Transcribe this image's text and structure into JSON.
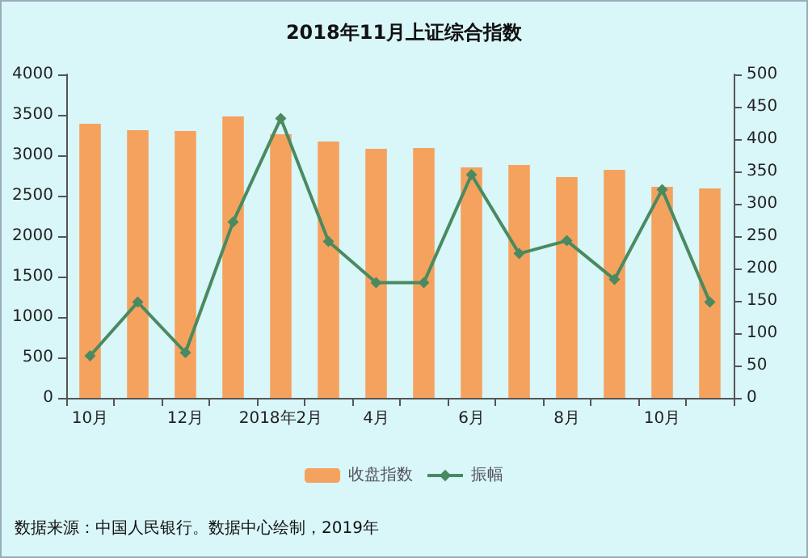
{
  "chart_data": {
    "type": "bar",
    "title": "2018年11月上证综合指数",
    "categories": [
      "10月",
      null,
      "12月",
      null,
      "2018年2月",
      null,
      "4月",
      null,
      "6月",
      null,
      "8月",
      null,
      "10月",
      null
    ],
    "series": [
      {
        "name": "收盘指数",
        "color": "#f5a25e",
        "values": [
          3390,
          3310,
          3300,
          3480,
          3260,
          3170,
          3080,
          3090,
          2850,
          2880,
          2730,
          2820,
          2610,
          2590
        ]
      },
      {
        "name": "振幅",
        "type": "line",
        "axis": "y2",
        "color": "#4a8a60",
        "marker": "diamond",
        "values": [
          65,
          148,
          70,
          272,
          432,
          242,
          178,
          178,
          345,
          223,
          243,
          183,
          322,
          148
        ]
      }
    ],
    "ylim": [
      0,
      4000
    ],
    "yticks": [
      0,
      500,
      1000,
      1500,
      2000,
      2500,
      3000,
      3500,
      4000
    ],
    "y2lim": [
      0,
      500
    ],
    "y2ticks": [
      0,
      50,
      100,
      150,
      200,
      250,
      300,
      350,
      400,
      450,
      500
    ],
    "grid": false,
    "legend": "bottom",
    "annotations": [
      "数据来源：中国人民银行。数据中心绘制，2019年"
    ]
  }
}
